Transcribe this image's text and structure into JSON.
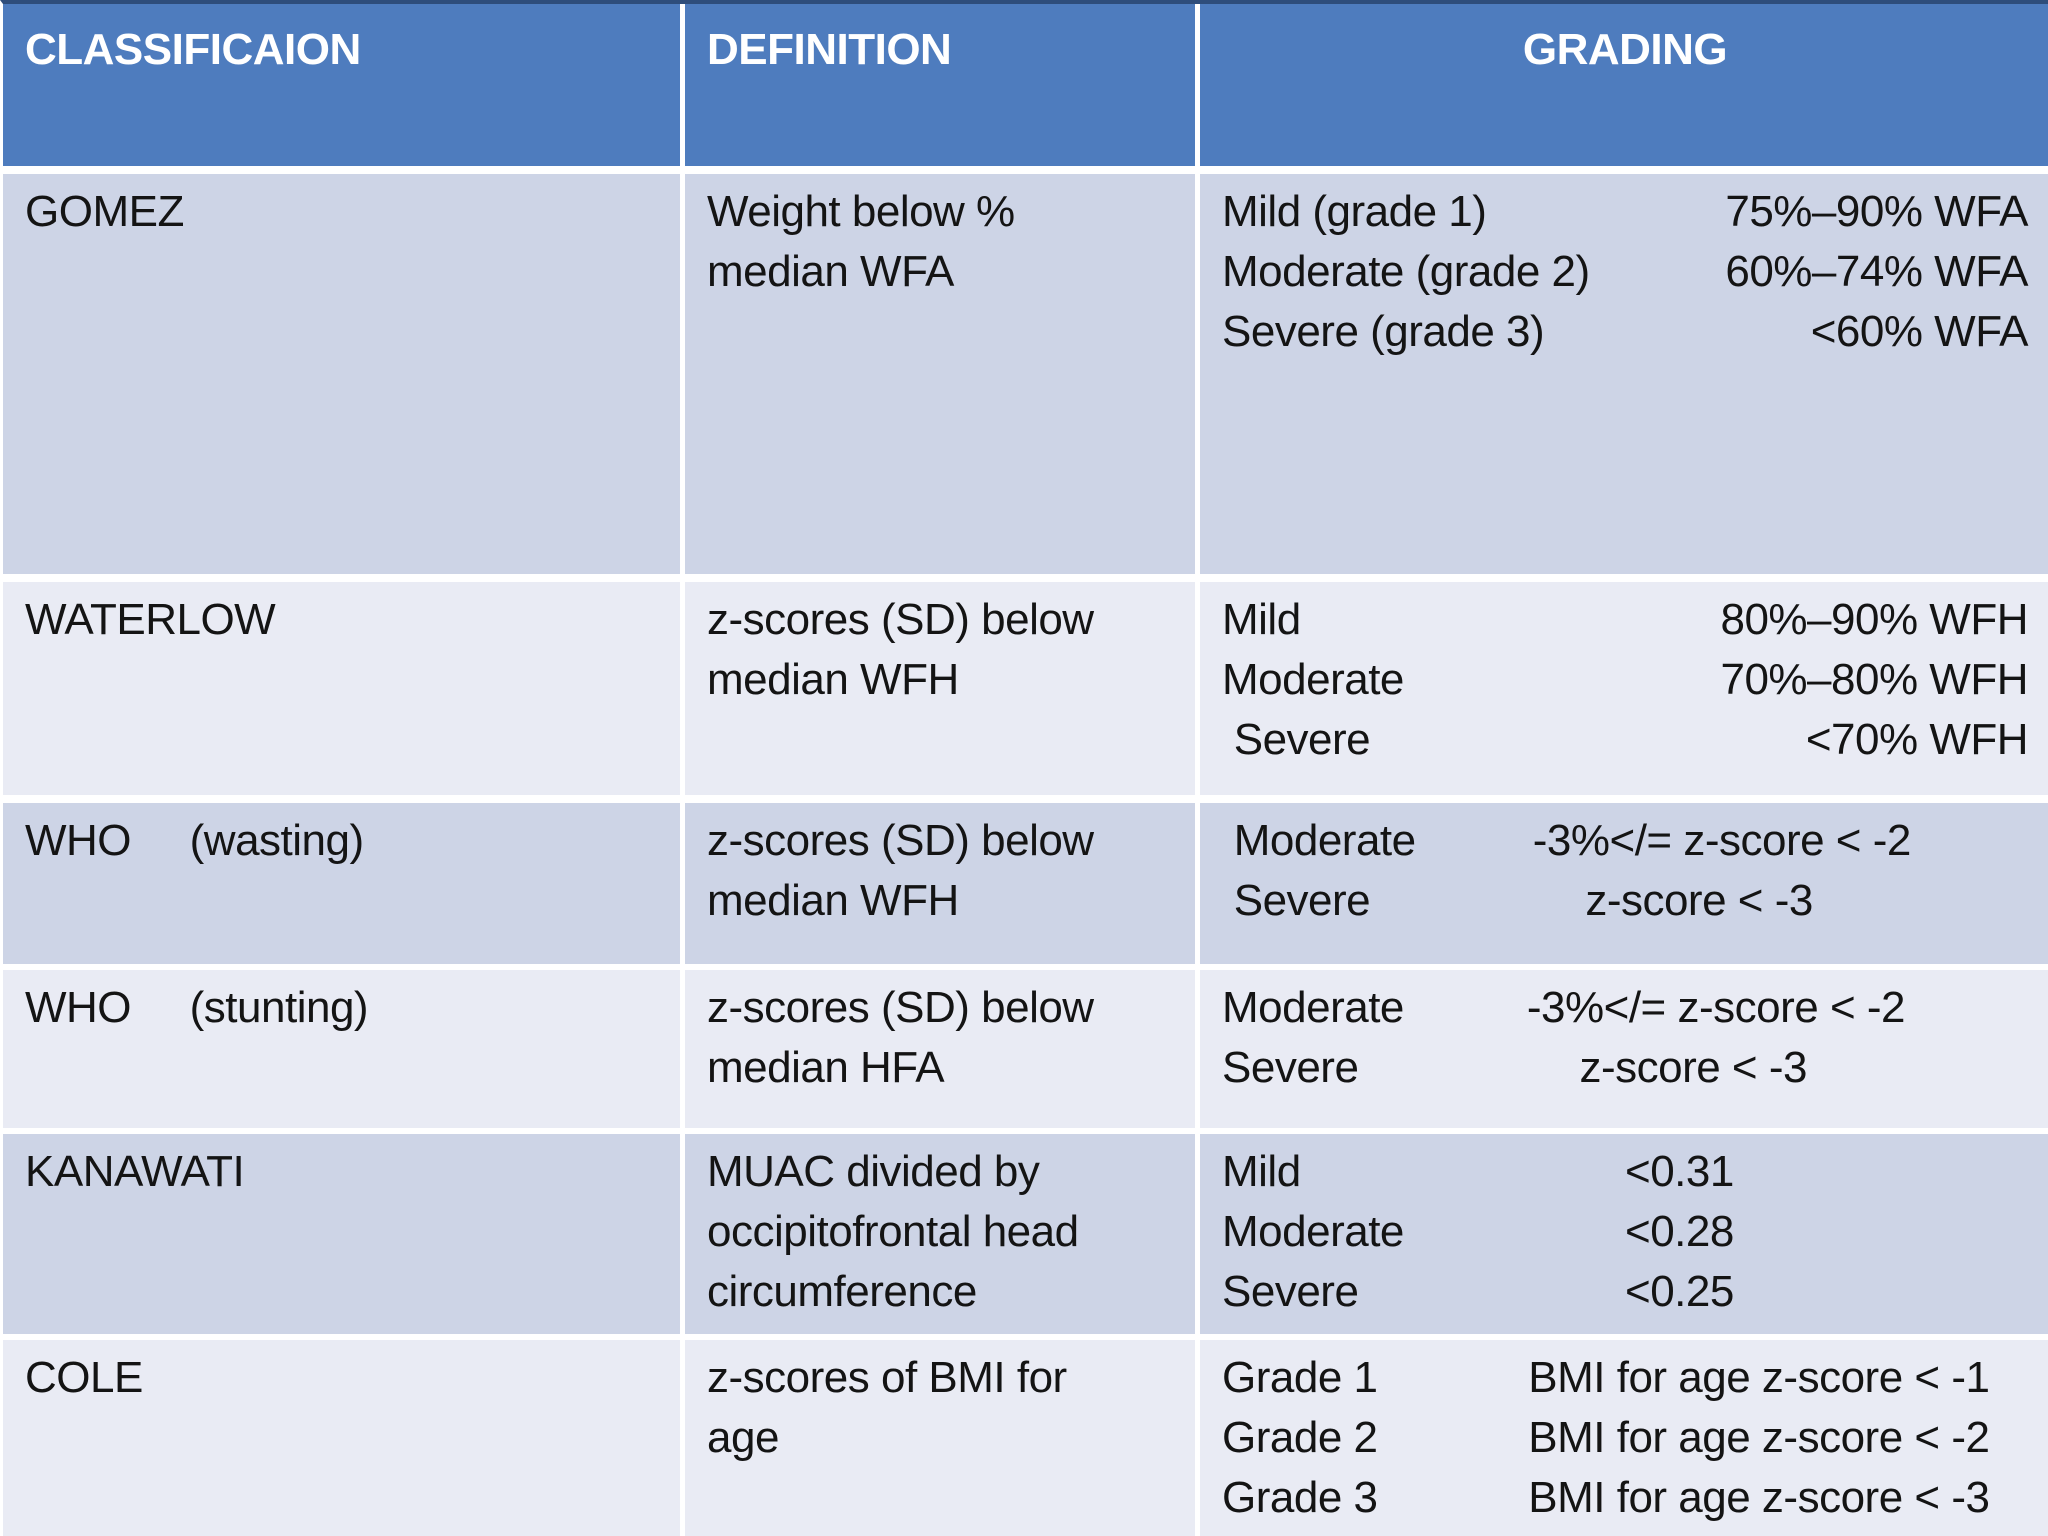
{
  "colors": {
    "header_bg": "#4e7cbe",
    "header_text": "#ffffff",
    "band_dark": "#cdd4e6",
    "band_light": "#e9ebf4",
    "top_border": "#2e4d7b",
    "divider": "#ffffff",
    "body_text": "#141414"
  },
  "table": {
    "headers": [
      {
        "label": "CLASSIFICAION"
      },
      {
        "label": "DEFINITION"
      },
      {
        "label": "GRADING"
      }
    ],
    "rows": [
      {
        "classification": "GOMEZ",
        "definition": "Weight below %\nmedian WFA",
        "grading": [
          {
            "label": "Mild (grade 1)",
            "value": "75%–90% WFA"
          },
          {
            "label": "Moderate (grade 2)",
            "value": "60%–74% WFA"
          },
          {
            "label": "Severe (grade 3)",
            "value": "<60% WFA"
          }
        ]
      },
      {
        "classification": "WATERLOW",
        "definition": "z-scores (SD) below\nmedian WFH",
        "grading": [
          {
            "label": "Mild",
            "value": "80%–90% WFH"
          },
          {
            "label": "Moderate",
            "value": "70%–80% WFH"
          },
          {
            "label": " Severe",
            "value": "<70% WFH"
          }
        ]
      },
      {
        "classification": "WHO     (wasting)",
        "definition": "z-scores (SD) below\nmedian WFH",
        "grading": [
          {
            "label": " Moderate",
            "value": "-3%</= z-score < -2"
          },
          {
            "label": " Severe",
            "value": "z-score < -3"
          }
        ]
      },
      {
        "classification": "WHO     (stunting)",
        "definition": "z-scores (SD) below\nmedian HFA",
        "grading": [
          {
            "label": "Moderate",
            "value": "-3%</= z-score < -2"
          },
          {
            "label": "Severe",
            "value": "z-score < -3"
          }
        ]
      },
      {
        "classification": "KANAWATI",
        "definition": "MUAC divided by\noccipitofrontal head\ncircumference",
        "grading": [
          {
            "label": "Mild",
            "value": "<0.31"
          },
          {
            "label": "Moderate",
            "value": "<0.28"
          },
          {
            "label": "Severe",
            "value": "<0.25"
          }
        ]
      },
      {
        "classification": "COLE",
        "definition": "z-scores of BMI for\nage",
        "grading": [
          {
            "label": "Grade 1",
            "value": "BMI for age z-score < -1"
          },
          {
            "label": "Grade 2",
            "value": "BMI for age z-score < -2"
          },
          {
            "label": "Grade 3",
            "value": "BMI for age z-score < -3"
          }
        ]
      }
    ]
  }
}
